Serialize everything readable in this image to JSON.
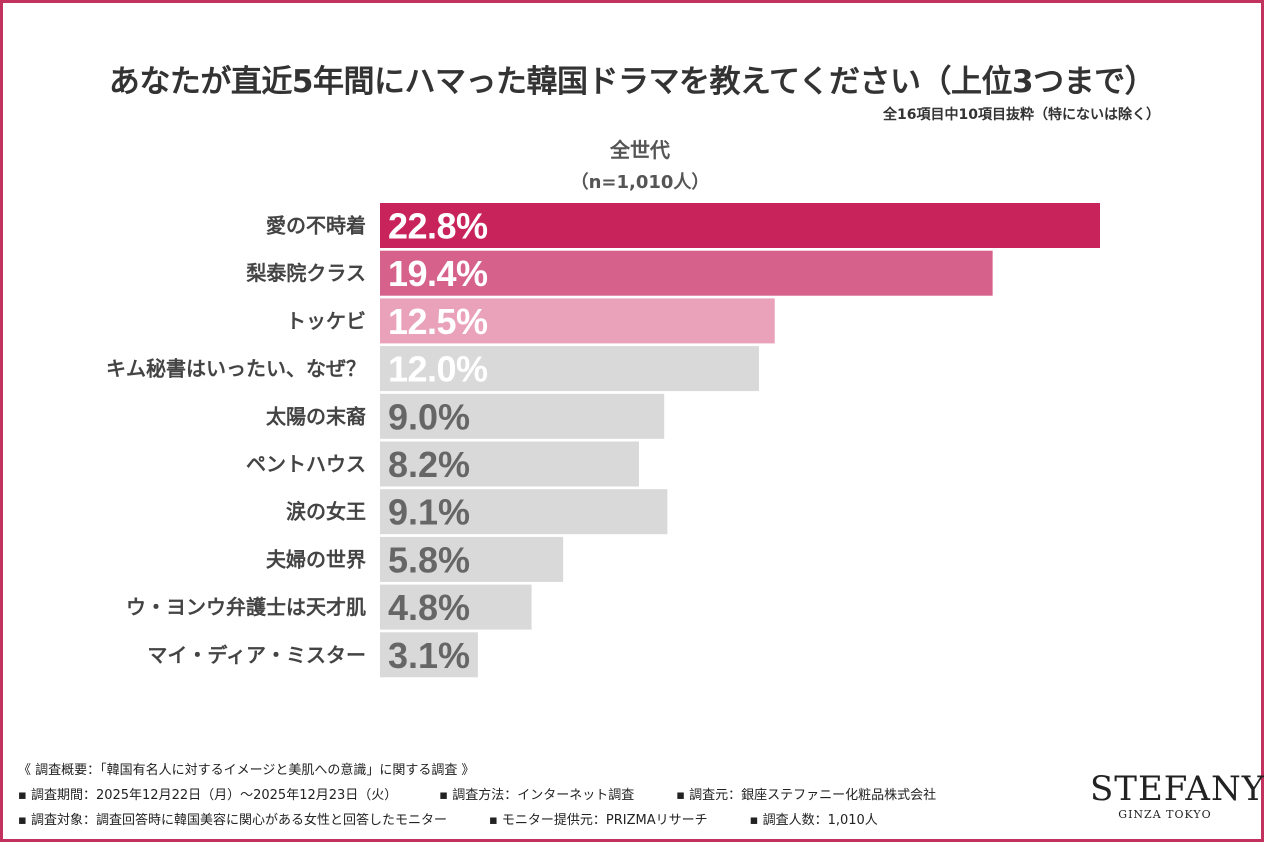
{
  "chart_data": {
    "type": "bar",
    "orientation": "horizontal",
    "title": "あなたが直近5年間にハマった韓国ドラマを教えてください（上位3つまで）",
    "subtitle": "全16項目中10項目抜粋（特にないは除く）",
    "series": [
      {
        "name": "全世代",
        "sample": "（n=1,010人）",
        "values": [
          22.8,
          19.4,
          12.5,
          12.0,
          9.0,
          8.2,
          9.1,
          5.8,
          4.8,
          3.1
        ]
      }
    ],
    "categories": [
      "愛の不時着",
      "梨泰院クラス",
      "トッケビ",
      "キム秘書はいったい、なぜ？",
      "太陽の末裔",
      "ペントハウス",
      "涙の女王",
      "夫婦の世界",
      "ウ・ヨンウ弁護士は天才肌",
      "マイ・ディア・ミスター"
    ],
    "data_labels": [
      "22.8%",
      "19.4%",
      "12.5%",
      "12.0%",
      "9.0%",
      "8.2%",
      "9.1%",
      "5.8%",
      "4.8%",
      "3.1%"
    ],
    "bar_colors": [
      "#c8235a",
      "#d6628b",
      "#e9a2b9",
      "#d9d9d9",
      "#d9d9d9",
      "#d9d9d9",
      "#d9d9d9",
      "#d9d9d9",
      "#d9d9d9",
      "#d9d9d9"
    ],
    "label_colors": [
      "#ffffff",
      "#ffffff",
      "#ffffff",
      "#ffffff",
      "#666666",
      "#666666",
      "#666666",
      "#666666",
      "#666666",
      "#666666"
    ],
    "xlim": [
      0,
      22.8
    ],
    "grid": false,
    "legend": "none"
  },
  "footer": {
    "overview": "《 調査概要：「韓国有名人に対するイメージと美肌への意識」に関する調査 》",
    "period": "▪ 調査期間：2025年12月22日（月）～2025年12月23日（火）",
    "method": "▪ 調査方法：インターネット調査",
    "organizer": "▪ 調査元：銀座ステファニー化粧品株式会社",
    "target": "▪ 調査対象：調査回答時に韓国美容に関心がある女性と回答したモニター",
    "provider": "▪ モニター提供元：PRIZMAリサーチ",
    "count": "▪ 調査人数：1,010人"
  },
  "logo": {
    "name": "STEFANY",
    "sub": "GINZA TOKYO"
  }
}
